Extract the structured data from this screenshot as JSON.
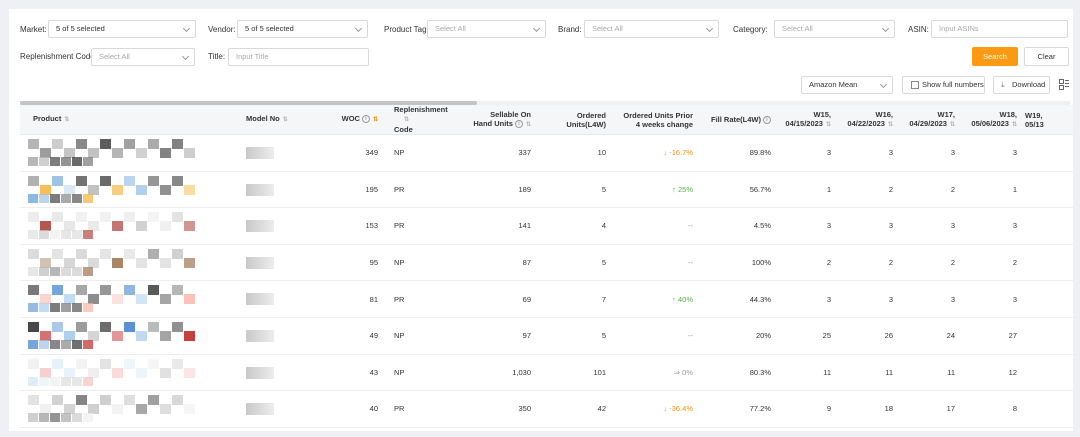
{
  "filters": {
    "market_label": "Market:",
    "market_value": "5 of 5 selected",
    "vendor_label": "Vendor:",
    "vendor_value": "5 of 5 selected",
    "product_tag_label": "Product Tag:",
    "product_tag_placeholder": "Select All",
    "brand_label": "Brand:",
    "brand_placeholder": "Select All",
    "category_label": "Category:",
    "category_placeholder": "Select All",
    "asin_label": "ASIN:",
    "asin_placeholder": "Input ASINs",
    "replenishment_label": "Replenishment Code:",
    "replenishment_placeholder": "Select All",
    "title_label": "Title:",
    "title_placeholder": "Input Title",
    "search_label": "Search",
    "clear_label": "Clear"
  },
  "toolbar": {
    "mean_value": "Amazon Mean",
    "full_numbers_label": "Show full numbers",
    "download_label": "Download"
  },
  "table": {
    "headers": {
      "product": "Product",
      "model": "Model No",
      "woc": "WOC",
      "repl": [
        "Replenishment",
        "Code"
      ],
      "sellable": [
        "Sellable On",
        "Hand Units"
      ],
      "ordered": [
        "Ordered",
        "Units(L4W)"
      ],
      "prior": [
        "Ordered Units Prior",
        "4 weeks change"
      ],
      "fill": "Fill Rate(L4W)",
      "w15": [
        "W15,",
        "04/15/2023"
      ],
      "w16": [
        "W16,",
        "04/22/2023"
      ],
      "w17": [
        "W17,",
        "04/29/2023"
      ],
      "w18": [
        "W18,",
        "05/06/2023"
      ],
      "w19": [
        "W19,",
        "05/13"
      ]
    },
    "rows": [
      {
        "woc": "349",
        "code": "NP",
        "sellable": "337",
        "ordered": "10",
        "change": "-16.7%",
        "dir": "down",
        "fill": "89.8%",
        "w15": "3",
        "w16": "3",
        "w17": "3",
        "w18": "3"
      },
      {
        "woc": "195",
        "code": "PR",
        "sellable": "189",
        "ordered": "5",
        "change": "25%",
        "dir": "up",
        "fill": "56.7%",
        "w15": "1",
        "w16": "2",
        "w17": "2",
        "w18": "1"
      },
      {
        "woc": "153",
        "code": "PR",
        "sellable": "141",
        "ordered": "4",
        "change": "--",
        "dir": "none",
        "fill": "4.5%",
        "w15": "3",
        "w16": "3",
        "w17": "3",
        "w18": "3"
      },
      {
        "woc": "95",
        "code": "NP",
        "sellable": "87",
        "ordered": "5",
        "change": "--",
        "dir": "none",
        "fill": "100%",
        "w15": "2",
        "w16": "2",
        "w17": "2",
        "w18": "2"
      },
      {
        "woc": "81",
        "code": "PR",
        "sellable": "69",
        "ordered": "7",
        "change": "40%",
        "dir": "up",
        "fill": "44.3%",
        "w15": "3",
        "w16": "3",
        "w17": "3",
        "w18": "3"
      },
      {
        "woc": "49",
        "code": "NP",
        "sellable": "97",
        "ordered": "5",
        "change": "--",
        "dir": "none",
        "fill": "20%",
        "w15": "25",
        "w16": "26",
        "w17": "24",
        "w18": "27"
      },
      {
        "woc": "43",
        "code": "NP",
        "sellable": "1,030",
        "ordered": "101",
        "change": "0%",
        "dir": "flat",
        "fill": "80.3%",
        "w15": "11",
        "w16": "11",
        "w17": "11",
        "w18": "12"
      },
      {
        "woc": "40",
        "code": "PR",
        "sellable": "350",
        "ordered": "42",
        "change": "-36.4%",
        "dir": "down",
        "fill": "77.2%",
        "w15": "9",
        "w16": "18",
        "w17": "17",
        "w18": "8"
      }
    ]
  }
}
